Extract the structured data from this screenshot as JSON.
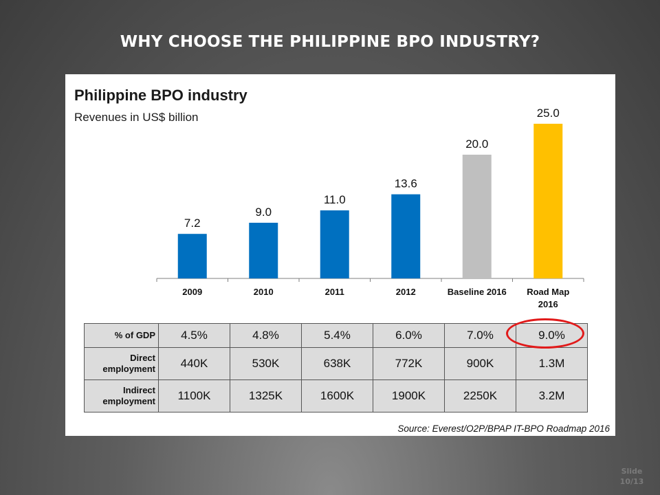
{
  "slide": {
    "title": "WHY CHOOSE THE PHILIPPINE BPO INDUSTRY?",
    "slide_label": "Slide",
    "slide_counter": "10/13"
  },
  "colors": {
    "actual": "#0070c0",
    "baseline": "#bfbfbf",
    "roadmap": "#ffc000",
    "highlight": "#e11a1a"
  },
  "chart_data": {
    "type": "bar",
    "title": "Philippine BPO industry",
    "subtitle": "Revenues in US$ billion",
    "xlabel": "",
    "ylabel": "",
    "categories": [
      "2009",
      "2010",
      "2011",
      "2012",
      "Baseline 2016",
      "Road Map 2016"
    ],
    "category_lines": [
      [
        "2009"
      ],
      [
        "2010"
      ],
      [
        "2011"
      ],
      [
        "2012"
      ],
      [
        "Baseline 2016"
      ],
      [
        "Road Map",
        "2016"
      ]
    ],
    "values": [
      7.2,
      9.0,
      11.0,
      13.6,
      20.0,
      25.0
    ],
    "value_labels": [
      "7.2",
      "9.0",
      "11.0",
      "13.6",
      "20.0",
      "25.0"
    ],
    "bar_colors": [
      "#0070c0",
      "#0070c0",
      "#0070c0",
      "#0070c0",
      "#bfbfbf",
      "#ffc000"
    ],
    "ylim": [
      0,
      25
    ],
    "grid": false
  },
  "table": {
    "rows": [
      {
        "label_lines": [
          "% of GDP"
        ],
        "values": [
          "4.5%",
          "4.8%",
          "5.4%",
          "6.0%",
          "7.0%",
          "9.0%"
        ]
      },
      {
        "label_lines": [
          "Direct",
          "employment"
        ],
        "values": [
          "440K",
          "530K",
          "638K",
          "772K",
          "900K",
          "1.3M"
        ]
      },
      {
        "label_lines": [
          "Indirect",
          "employment"
        ],
        "values": [
          "1100K",
          "1325K",
          "1600K",
          "1900K",
          "2250K",
          "3.2M"
        ]
      }
    ]
  },
  "source": "Source: Everest/O2P/BPAP IT-BPO Roadmap 2016"
}
